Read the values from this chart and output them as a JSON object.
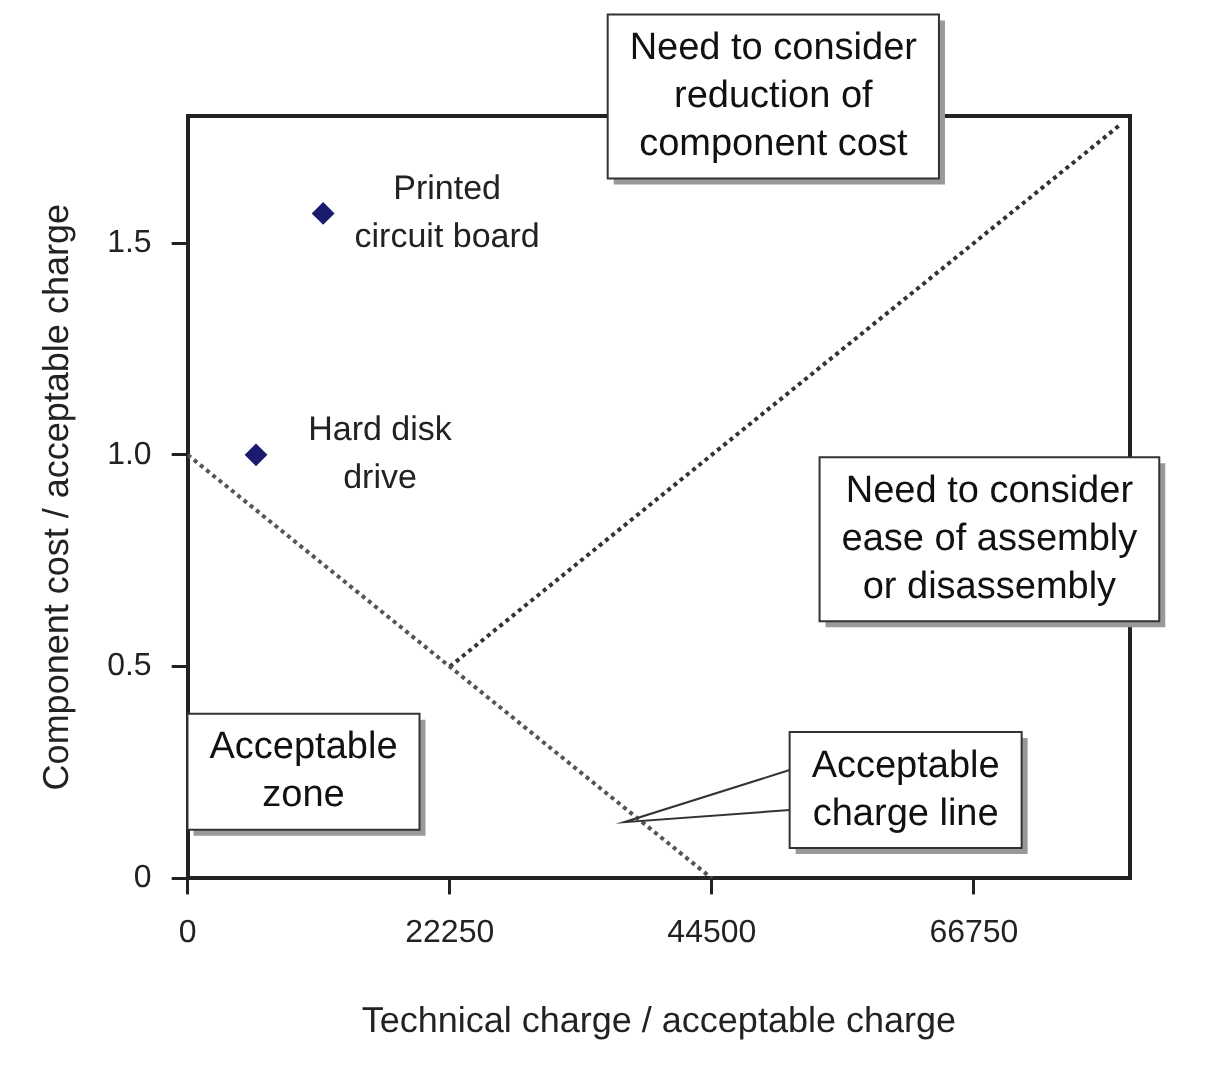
{
  "chart_data": {
    "type": "scatter",
    "xlabel": "Technical charge / acceptable charge",
    "ylabel": "Component cost / acceptable charge",
    "xlim": [
      0,
      80000
    ],
    "xticks": [
      0,
      22250,
      44500,
      66750
    ],
    "ylim": [
      0,
      1.8
    ],
    "yticks": [
      0,
      0.5,
      {
        "value": 1,
        "label": "1.0"
      },
      1.5
    ],
    "grid": false,
    "legend": false,
    "series": [
      {
        "type": "line",
        "x": [
          0,
          44500
        ],
        "values": [
          1.0,
          0
        ],
        "color": "#555555",
        "marker": "none",
        "line_style": "dotted"
      },
      {
        "type": "line",
        "x": [
          22250,
          79200
        ],
        "values": [
          0.5,
          1.78
        ],
        "color": "#333333",
        "marker": "none",
        "line_style": "dotted"
      },
      {
        "type": "scatter",
        "name": "Printed\ncircuit board",
        "x": [
          11500
        ],
        "values": [
          1.57
        ],
        "color": "#1a1a6e",
        "marker": "diamond"
      },
      {
        "type": "scatter",
        "name": "Hard disk\ndrive",
        "x": [
          5800
        ],
        "values": [
          1.0
        ],
        "color": "#1a1a6e",
        "marker": "diamond"
      }
    ],
    "annotations": [
      "Need to consider\nreduction of\ncomponent cost",
      "Need to consider\nease of assembly\nor disassembly",
      "Acceptable\nzone",
      "Acceptable\ncharge line"
    ]
  }
}
